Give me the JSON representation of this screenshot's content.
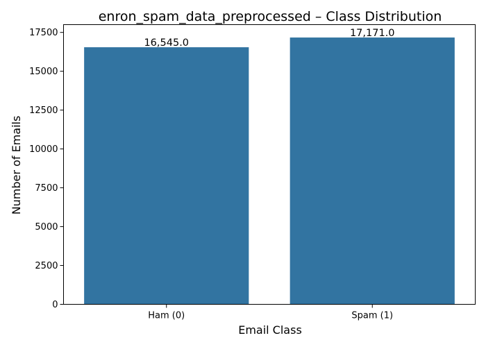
{
  "chart_data": {
    "type": "bar",
    "title": "enron_spam_data_preprocessed – Class Distribution",
    "xlabel": "Email Class",
    "ylabel": "Number of Emails",
    "categories": [
      "Ham (0)",
      "Spam (1)"
    ],
    "values": [
      16545,
      17171
    ],
    "data_labels": [
      "16,545.0",
      "17,171.0"
    ],
    "ylim": [
      0,
      18000
    ],
    "yticks": [
      0,
      2500,
      5000,
      7500,
      10000,
      12500,
      15000,
      17500
    ],
    "ytick_labels": [
      "0",
      "2500",
      "5000",
      "7500",
      "10000",
      "12500",
      "15000",
      "17500"
    ],
    "grid": false,
    "legend": "none",
    "bar_color": "#3274a1"
  }
}
